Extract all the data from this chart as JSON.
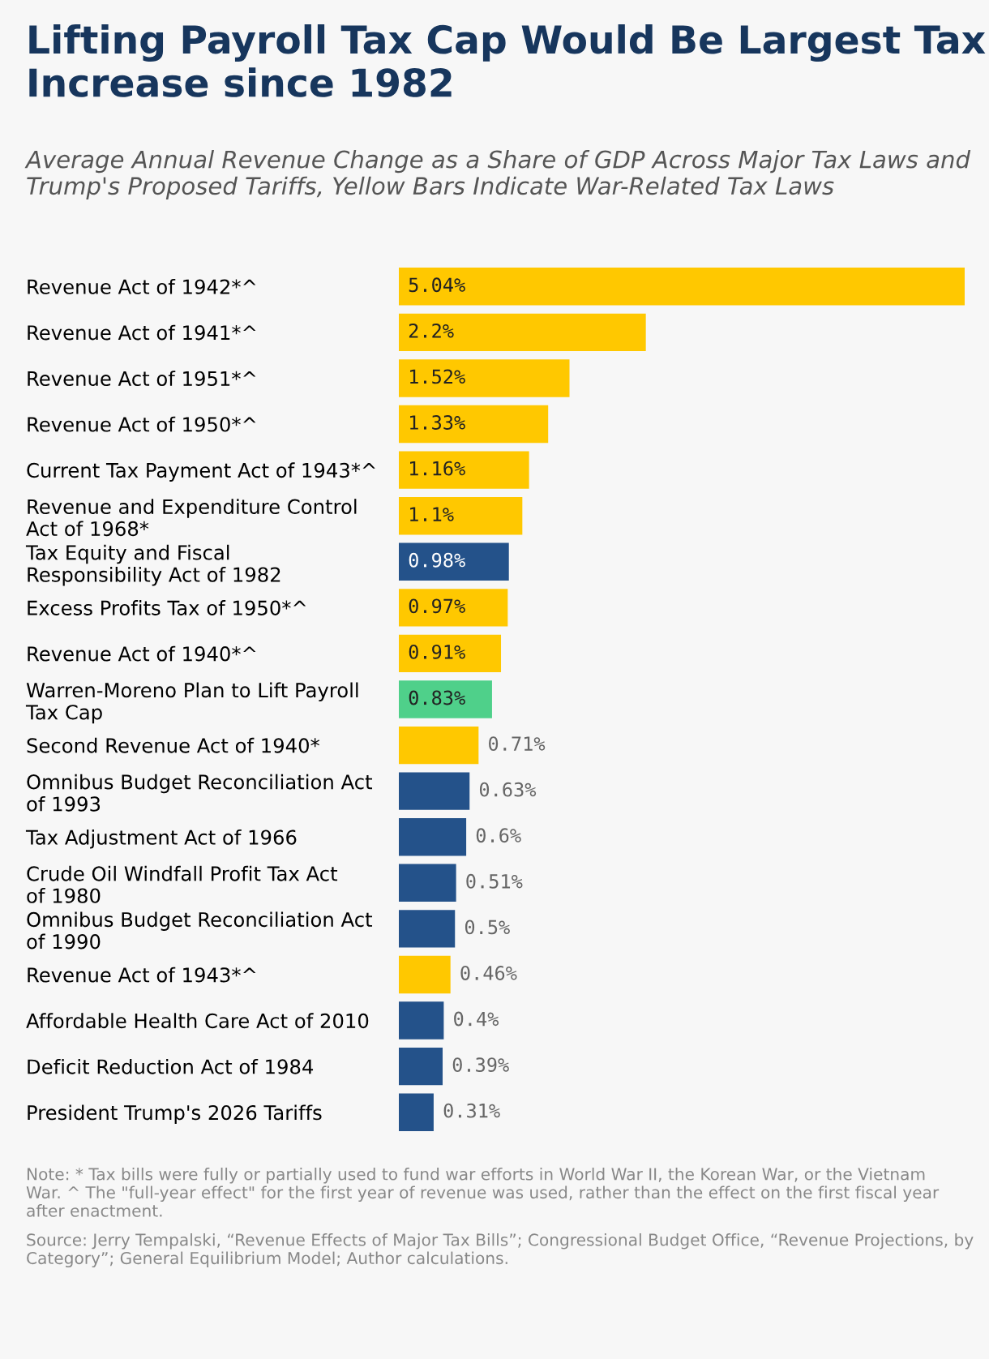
{
  "chart_data": {
    "type": "bar",
    "orientation": "horizontal",
    "title": "Lifting Payroll Tax Cap Would Be Largest Tax Increase since 1982",
    "subtitle": "Average Annual Revenue Change as a Share of GDP Across Major Tax Laws and Trump's Proposed Tariffs, Yellow Bars Indicate War-Related Tax Laws",
    "categories": [
      "Revenue Act of 1942*^",
      "Revenue Act of 1941*^",
      "Revenue Act of 1951*^",
      "Revenue Act of 1950*^",
      "Current Tax Payment Act of 1943*^",
      "Revenue and Expenditure Control Act of 1968*",
      "Tax Equity and Fiscal Responsibility Act of 1982",
      "Excess Profits Tax of 1950*^",
      "Revenue Act of 1940*^",
      "Warren-Moreno Plan to Lift Payroll Tax Cap",
      "Second Revenue Act of 1940*",
      "Omnibus Budget Reconciliation Act of 1993",
      "Tax Adjustment Act of 1966",
      "Crude Oil Windfall Profit Tax Act of 1980",
      "Omnibus Budget Reconciliation Act of 1990",
      "Revenue Act of 1943*^",
      "Affordable Health Care Act of 2010",
      "Deficit Reduction Act of 1984",
      "President Trump's 2026 Tariffs"
    ],
    "values": [
      5.04,
      2.2,
      1.52,
      1.33,
      1.16,
      1.1,
      0.98,
      0.97,
      0.91,
      0.83,
      0.71,
      0.63,
      0.6,
      0.51,
      0.5,
      0.46,
      0.4,
      0.39,
      0.31
    ],
    "value_labels": [
      "5.04%",
      "2.2%",
      "1.52%",
      "1.33%",
      "1.16%",
      "1.1%",
      "0.98%",
      "0.97%",
      "0.91%",
      "0.83%",
      "0.71%",
      "0.63%",
      "0.6%",
      "0.51%",
      "0.5%",
      "0.46%",
      "0.4%",
      "0.39%",
      "0.31%"
    ],
    "colors": [
      "#ffc800",
      "#ffc800",
      "#ffc800",
      "#ffc800",
      "#ffc800",
      "#ffc800",
      "#24528a",
      "#ffc800",
      "#ffc800",
      "#4fd08a",
      "#ffc800",
      "#24528a",
      "#24528a",
      "#24528a",
      "#24528a",
      "#ffc800",
      "#24528a",
      "#24528a",
      "#24528a"
    ],
    "grid": false,
    "legend": false,
    "annotations": [
      "Note: * Tax bills were fully or partially used to fund war efforts in World War II, the Korean War, or the Vietnam War. ^ The \"full-year effect\" for the first year of revenue was used, rather than the effect on the first fiscal year after enactment.",
      "Source: Jerry Tempalski, “Revenue Effects of Major Tax Bills”; Congressional Budget Office, “Revenue Projections, by Category”; General Equilibrium Model; Author calculations."
    ]
  }
}
